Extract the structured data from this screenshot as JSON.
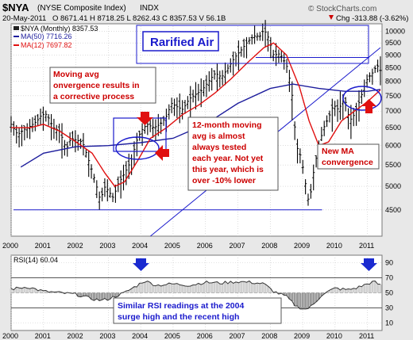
{
  "header": {
    "symbol": "$NYA",
    "name": "(NYSE Composite Index)",
    "suffix": "INDX",
    "date": "20-May-2011",
    "ohlc": "O 8671.41  H 8718.25  L 8262.43  C 8357.53  V 56.1B",
    "chg": "Chg -313.88 (-3.62%)",
    "watermark": "© StockCharts.com",
    "chg_arrow_color": "#cc0000"
  },
  "colors": {
    "ma50": "#1c1c9c",
    "ma12": "#e01010",
    "annotation": "#cc0000",
    "box": "#1a1acc",
    "price": "#000000",
    "panel_bg": "#ffffff",
    "grid": "#c8c8c8"
  },
  "chart_data": [
    {
      "type": "bar",
      "title": "",
      "legend": {
        "placement": "top-left",
        "entries": [
          {
            "label": "$NYA (Monthly) 8357.53",
            "color": "#000000"
          },
          {
            "label": "MA(50) 7716.26",
            "color": "#1c1c9c"
          },
          {
            "label": "MA(12) 7697.82",
            "color": "#e01010"
          }
        ]
      },
      "x_ticks": [
        "2000",
        "2001",
        "2002",
        "2003",
        "2004",
        "2005",
        "2006",
        "2007",
        "2008",
        "2009",
        "2010",
        "2011"
      ],
      "xlim": [
        2000.0,
        2011.45
      ],
      "y_ticks": [
        4500,
        5000,
        5500,
        6000,
        6500,
        7000,
        7500,
        8000,
        8500,
        9000,
        9500,
        10000
      ],
      "ylim": [
        4000,
        10350
      ],
      "y_scale": "log",
      "grid": true,
      "price_anchors": [
        [
          2000.0,
          6600
        ],
        [
          2000.2,
          6300
        ],
        [
          2000.4,
          6450
        ],
        [
          2000.6,
          6550
        ],
        [
          2000.8,
          6700
        ],
        [
          2000.95,
          6900
        ],
        [
          2001.1,
          6900
        ],
        [
          2001.3,
          6500
        ],
        [
          2001.5,
          6400
        ],
        [
          2001.7,
          5900
        ],
        [
          2001.85,
          6200
        ],
        [
          2002.0,
          6150
        ],
        [
          2002.2,
          6100
        ],
        [
          2002.4,
          5600
        ],
        [
          2002.6,
          5100
        ],
        [
          2002.75,
          4700
        ],
        [
          2002.9,
          5000
        ],
        [
          2003.0,
          4900
        ],
        [
          2003.15,
          4750
        ],
        [
          2003.3,
          5050
        ],
        [
          2003.5,
          5300
        ],
        [
          2003.7,
          5600
        ],
        [
          2003.9,
          6200
        ],
        [
          2004.05,
          6450
        ],
        [
          2004.2,
          6600
        ],
        [
          2004.4,
          6500
        ],
        [
          2004.6,
          6600
        ],
        [
          2004.8,
          6850
        ],
        [
          2004.95,
          7250
        ],
        [
          2005.1,
          7150
        ],
        [
          2005.3,
          7050
        ],
        [
          2005.5,
          7400
        ],
        [
          2005.7,
          7550
        ],
        [
          2005.9,
          7700
        ],
        [
          2006.1,
          8000
        ],
        [
          2006.3,
          8300
        ],
        [
          2006.5,
          8150
        ],
        [
          2006.7,
          8500
        ],
        [
          2006.9,
          8900
        ],
        [
          2007.1,
          9200
        ],
        [
          2007.3,
          9550
        ],
        [
          2007.5,
          9800
        ],
        [
          2007.7,
          9800
        ],
        [
          2007.8,
          10100
        ],
        [
          2007.95,
          9700
        ],
        [
          2008.1,
          9000
        ],
        [
          2008.3,
          9050
        ],
        [
          2008.5,
          8600
        ],
        [
          2008.65,
          7800
        ],
        [
          2008.8,
          6000
        ],
        [
          2008.95,
          5700
        ],
        [
          2009.1,
          5000
        ],
        [
          2009.2,
          4600
        ],
        [
          2009.35,
          5400
        ],
        [
          2009.5,
          6000
        ],
        [
          2009.65,
          6500
        ],
        [
          2009.8,
          6800
        ],
        [
          2009.95,
          7200
        ],
        [
          2010.1,
          7050
        ],
        [
          2010.3,
          7400
        ],
        [
          2010.45,
          6700
        ],
        [
          2010.6,
          6900
        ],
        [
          2010.75,
          7300
        ],
        [
          2010.9,
          7800
        ],
        [
          2011.0,
          8100
        ],
        [
          2011.15,
          8300
        ],
        [
          2011.3,
          8600
        ],
        [
          2011.4,
          8400
        ]
      ],
      "ma50_anchors": [
        [
          2000.3,
          5450
        ],
        [
          2001.0,
          5800
        ],
        [
          2002.0,
          5970
        ],
        [
          2003.0,
          6000
        ],
        [
          2004.0,
          6080
        ],
        [
          2005.0,
          6200
        ],
        [
          2006.0,
          6600
        ],
        [
          2007.0,
          7250
        ],
        [
          2008.0,
          7750
        ],
        [
          2008.7,
          7900
        ],
        [
          2009.5,
          7750
        ],
        [
          2010.3,
          7650
        ],
        [
          2011.0,
          7650
        ],
        [
          2011.4,
          7716
        ]
      ],
      "ma12_anchors": [
        [
          2000.0,
          6500
        ],
        [
          2000.6,
          6500
        ],
        [
          2001.0,
          6600
        ],
        [
          2001.5,
          6400
        ],
        [
          2002.0,
          6100
        ],
        [
          2002.5,
          5800
        ],
        [
          2002.9,
          5300
        ],
        [
          2003.2,
          5000
        ],
        [
          2003.5,
          5100
        ],
        [
          2003.9,
          5600
        ],
        [
          2004.3,
          6200
        ],
        [
          2004.8,
          6500
        ],
        [
          2005.3,
          6900
        ],
        [
          2005.8,
          7200
        ],
        [
          2006.3,
          7600
        ],
        [
          2006.8,
          8100
        ],
        [
          2007.3,
          8700
        ],
        [
          2007.8,
          9300
        ],
        [
          2008.1,
          9500
        ],
        [
          2008.5,
          9000
        ],
        [
          2008.9,
          7800
        ],
        [
          2009.2,
          6700
        ],
        [
          2009.5,
          6000
        ],
        [
          2009.8,
          6100
        ],
        [
          2010.2,
          6700
        ],
        [
          2010.6,
          7000
        ],
        [
          2011.0,
          7300
        ],
        [
          2011.4,
          7698
        ]
      ],
      "support_level": 4500,
      "resistance_level": 8900,
      "trendline": [
        [
          2004.3,
          1000
        ],
        [
          2011.4,
          9300
        ]
      ]
    },
    {
      "type": "line",
      "title": "",
      "legend": {
        "placement": "top-left",
        "entries": [
          {
            "label": "RSI(14) 60.04",
            "color": "#000000"
          }
        ]
      },
      "ylim": [
        0,
        100
      ],
      "y_ticks": [
        10,
        30,
        50,
        70,
        90
      ],
      "overbought": 70,
      "oversold": 30,
      "rsi_anchors": [
        [
          2000.0,
          55
        ],
        [
          2000.5,
          58
        ],
        [
          2001.0,
          52
        ],
        [
          2001.5,
          50
        ],
        [
          2002.0,
          48
        ],
        [
          2002.5,
          42
        ],
        [
          2002.8,
          40
        ],
        [
          2003.0,
          42
        ],
        [
          2003.5,
          50
        ],
        [
          2003.9,
          60
        ],
        [
          2004.1,
          66
        ],
        [
          2004.5,
          60
        ],
        [
          2005.0,
          62
        ],
        [
          2005.5,
          60
        ],
        [
          2006.0,
          64
        ],
        [
          2006.5,
          63
        ],
        [
          2007.0,
          65
        ],
        [
          2007.4,
          64
        ],
        [
          2007.8,
          62
        ],
        [
          2008.1,
          52
        ],
        [
          2008.5,
          45
        ],
        [
          2008.8,
          32
        ],
        [
          2009.1,
          28
        ],
        [
          2009.3,
          33
        ],
        [
          2009.6,
          48
        ],
        [
          2010.0,
          56
        ],
        [
          2010.4,
          54
        ],
        [
          2010.7,
          57
        ],
        [
          2011.0,
          62
        ],
        [
          2011.2,
          65
        ],
        [
          2011.4,
          60
        ]
      ]
    }
  ],
  "annotations": {
    "rarified": "Rarified Air",
    "moving_avg": [
      "Moving avg",
      "onvergence results in",
      "a corrective process"
    ],
    "twelve_month": [
      "12-month moving",
      "avg is almost",
      "always tested",
      "each year. Not yet",
      "this year, which is",
      "over -10% lower"
    ],
    "new_ma": [
      "New MA",
      "convergence"
    ],
    "rsi_note": [
      "Similar RSI readings at the 2004",
      "surge high and the recent high"
    ]
  }
}
